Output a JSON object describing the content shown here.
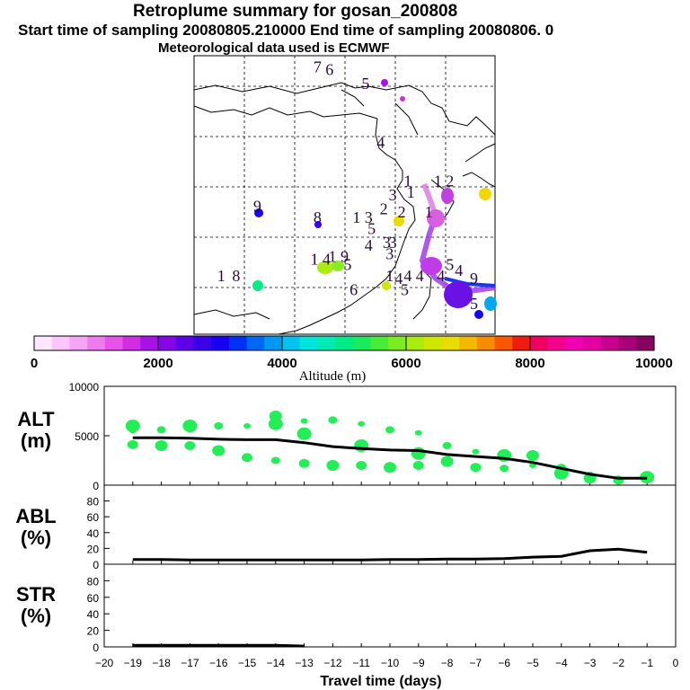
{
  "header": {
    "title": "Retroplume summary for gosan_200808",
    "sampling": "Start time of sampling 20080805.210000     End time of sampling 20080806.     0",
    "met": "Meteorological data used is ECMWF"
  },
  "colors": {
    "scatter": "#22ee55",
    "line": "#000000",
    "outline": "#000000"
  },
  "colorbar": {
    "label": "Altitude (m)",
    "ticks": [
      "0",
      "2000",
      "4000",
      "6000",
      "8000",
      "10000"
    ],
    "min": 0,
    "max": 10000,
    "colors": [
      "#ffe6ff",
      "#fcc6fc",
      "#f6a4f6",
      "#ef7cef",
      "#e553e8",
      "#d02ee0",
      "#a812e6",
      "#8606e8",
      "#5c00ea",
      "#3a00e8",
      "#1800f0",
      "#0030f4",
      "#0068f4",
      "#0098f0",
      "#00c4ec",
      "#00e4de",
      "#00ecb4",
      "#00ec88",
      "#18ec5c",
      "#48ec38",
      "#7cec20",
      "#a8ec10",
      "#cce800",
      "#e8dc00",
      "#f4b800",
      "#f88c00",
      "#f85800",
      "#f01c10",
      "#f00060",
      "#f4008c",
      "#f000b0",
      "#e400a4",
      "#c80090",
      "#a80078",
      "#880060"
    ]
  },
  "map": {
    "labels": [
      {
        "text": "7",
        "lon": 0.41,
        "lat": 0.06
      },
      {
        "text": "6",
        "lon": 0.45,
        "lat": 0.07
      },
      {
        "text": "5",
        "lon": 0.57,
        "lat": 0.12
      },
      {
        "text": "4",
        "lon": 0.62,
        "lat": 0.33
      },
      {
        "text": "3",
        "lon": 0.66,
        "lat": 0.52
      },
      {
        "text": "1",
        "lon": 0.72,
        "lat": 0.51
      },
      {
        "text": "2",
        "lon": 0.63,
        "lat": 0.57
      },
      {
        "text": "2",
        "lon": 0.69,
        "lat": 0.58
      },
      {
        "text": "1",
        "lon": 0.78,
        "lat": 0.58
      },
      {
        "text": "1",
        "lon": 0.71,
        "lat": 0.47
      },
      {
        "text": "1",
        "lon": 0.81,
        "lat": 0.47
      },
      {
        "text": "2",
        "lon": 0.85,
        "lat": 0.47
      },
      {
        "text": "9",
        "lon": 0.21,
        "lat": 0.56
      },
      {
        "text": "8",
        "lon": 0.41,
        "lat": 0.6
      },
      {
        "text": "1",
        "lon": 0.54,
        "lat": 0.6
      },
      {
        "text": "3",
        "lon": 0.58,
        "lat": 0.6
      },
      {
        "text": "5",
        "lon": 0.59,
        "lat": 0.64
      },
      {
        "text": "4",
        "lon": 0.58,
        "lat": 0.7
      },
      {
        "text": "3",
        "lon": 0.64,
        "lat": 0.69
      },
      {
        "text": "3",
        "lon": 0.66,
        "lat": 0.69
      },
      {
        "text": "1",
        "lon": 0.4,
        "lat": 0.75
      },
      {
        "text": "4",
        "lon": 0.44,
        "lat": 0.75
      },
      {
        "text": "1",
        "lon": 0.46,
        "lat": 0.74
      },
      {
        "text": "9",
        "lon": 0.5,
        "lat": 0.74
      },
      {
        "text": "5",
        "lon": 0.51,
        "lat": 0.77
      },
      {
        "text": "3",
        "lon": 0.65,
        "lat": 0.73
      },
      {
        "text": "4",
        "lon": 0.68,
        "lat": 0.82
      },
      {
        "text": "5",
        "lon": 0.7,
        "lat": 0.86
      },
      {
        "text": "4",
        "lon": 0.88,
        "lat": 0.79
      },
      {
        "text": "9",
        "lon": 0.93,
        "lat": 0.82
      },
      {
        "text": "1",
        "lon": 0.09,
        "lat": 0.81
      },
      {
        "text": "8",
        "lon": 0.14,
        "lat": 0.81
      },
      {
        "text": "1",
        "lon": 0.65,
        "lat": 0.81
      },
      {
        "text": "4",
        "lon": 0.71,
        "lat": 0.81
      },
      {
        "text": "4",
        "lon": 0.75,
        "lat": 0.81
      },
      {
        "text": "4",
        "lon": 0.82,
        "lat": 0.81
      },
      {
        "text": "5",
        "lon": 0.85,
        "lat": 0.77
      },
      {
        "text": "6",
        "lon": 0.53,
        "lat": 0.86
      },
      {
        "text": "5",
        "lon": 0.93,
        "lat": 0.91
      }
    ]
  },
  "chart_data": [
    {
      "type": "scatter",
      "name": "ALT",
      "ylabel": "ALT\n(m)",
      "ylim": [
        0,
        10000
      ],
      "yticks": [
        0,
        5000,
        10000
      ],
      "xlim": [
        -20,
        0
      ],
      "median": {
        "x": [
          -19,
          -18,
          -17,
          -16,
          -15,
          -14,
          -13,
          -12,
          -11,
          -10,
          -9,
          -8,
          -7,
          -6,
          -5,
          -4,
          -3,
          -2,
          -1
        ],
        "y": [
          4800,
          4800,
          4750,
          4650,
          4600,
          4600,
          4300,
          3900,
          3700,
          3550,
          3500,
          3100,
          2900,
          2700,
          2300,
          1700,
          1100,
          700,
          700
        ]
      },
      "points": [
        {
          "x": -19,
          "y": 5500
        },
        {
          "x": -19,
          "y": 4100
        },
        {
          "x": -19,
          "y": 6000
        },
        {
          "x": -18,
          "y": 5600
        },
        {
          "x": -18,
          "y": 4000
        },
        {
          "x": -17,
          "y": 5600
        },
        {
          "x": -17,
          "y": 4000
        },
        {
          "x": -17,
          "y": 6000
        },
        {
          "x": -16,
          "y": 6000
        },
        {
          "x": -16,
          "y": 3500
        },
        {
          "x": -15,
          "y": 6000
        },
        {
          "x": -15,
          "y": 2800
        },
        {
          "x": -14,
          "y": 6200
        },
        {
          "x": -14,
          "y": 2500
        },
        {
          "x": -14,
          "y": 7000
        },
        {
          "x": -13,
          "y": 6500
        },
        {
          "x": -13,
          "y": 2200
        },
        {
          "x": -13,
          "y": 5200
        },
        {
          "x": -12,
          "y": 6600
        },
        {
          "x": -12,
          "y": 2000
        },
        {
          "x": -11,
          "y": 6200
        },
        {
          "x": -11,
          "y": 2000
        },
        {
          "x": -11,
          "y": 4000
        },
        {
          "x": -10,
          "y": 5600
        },
        {
          "x": -10,
          "y": 1800
        },
        {
          "x": -9,
          "y": 5300
        },
        {
          "x": -9,
          "y": 2000
        },
        {
          "x": -9,
          "y": 3200
        },
        {
          "x": -8,
          "y": 4000
        },
        {
          "x": -8,
          "y": 2400
        },
        {
          "x": -7,
          "y": 3400
        },
        {
          "x": -7,
          "y": 1800
        },
        {
          "x": -6,
          "y": 3000
        },
        {
          "x": -6,
          "y": 1700
        },
        {
          "x": -5,
          "y": 3000
        },
        {
          "x": -5,
          "y": 2000
        },
        {
          "x": -4,
          "y": 1700
        },
        {
          "x": -4,
          "y": 1200
        },
        {
          "x": -3,
          "y": 1000
        },
        {
          "x": -3,
          "y": 700
        },
        {
          "x": -2,
          "y": 700
        },
        {
          "x": -2,
          "y": 500
        },
        {
          "x": -1,
          "y": 800
        },
        {
          "x": -1,
          "y": 600
        }
      ]
    },
    {
      "type": "line",
      "name": "ABL",
      "ylabel": "ABL\n(%)",
      "ylim": [
        0,
        100
      ],
      "yticks": [
        0,
        20,
        40,
        60,
        80
      ],
      "xlim": [
        -20,
        0
      ],
      "x": [
        -19,
        -18,
        -17,
        -16,
        -15,
        -14,
        -13,
        -12,
        -11,
        -10,
        -9,
        -8,
        -7,
        -6,
        -5,
        -4,
        -3,
        -2,
        -1
      ],
      "y": [
        6,
        6,
        5.5,
        5.5,
        5.5,
        5.5,
        5.5,
        5.5,
        5.5,
        6,
        6,
        6.5,
        6.5,
        7,
        9,
        10,
        17,
        19,
        15
      ]
    },
    {
      "type": "line",
      "name": "STR",
      "ylabel": "STR\n(%)",
      "ylim": [
        0,
        100
      ],
      "yticks": [
        0,
        20,
        40,
        60,
        80
      ],
      "xlim": [
        -20,
        0
      ],
      "x": [
        -19,
        -18,
        -17,
        -16,
        -15,
        -14,
        -13
      ],
      "y": [
        2,
        2,
        2,
        2,
        2,
        2,
        1
      ],
      "xlabel": "Travel time (days)",
      "xticks": [
        -20,
        -19,
        -18,
        -17,
        -16,
        -15,
        -14,
        -13,
        -12,
        -11,
        -10,
        -9,
        -8,
        -7,
        -6,
        -5,
        -4,
        -3,
        -2,
        -1,
        0
      ]
    }
  ]
}
